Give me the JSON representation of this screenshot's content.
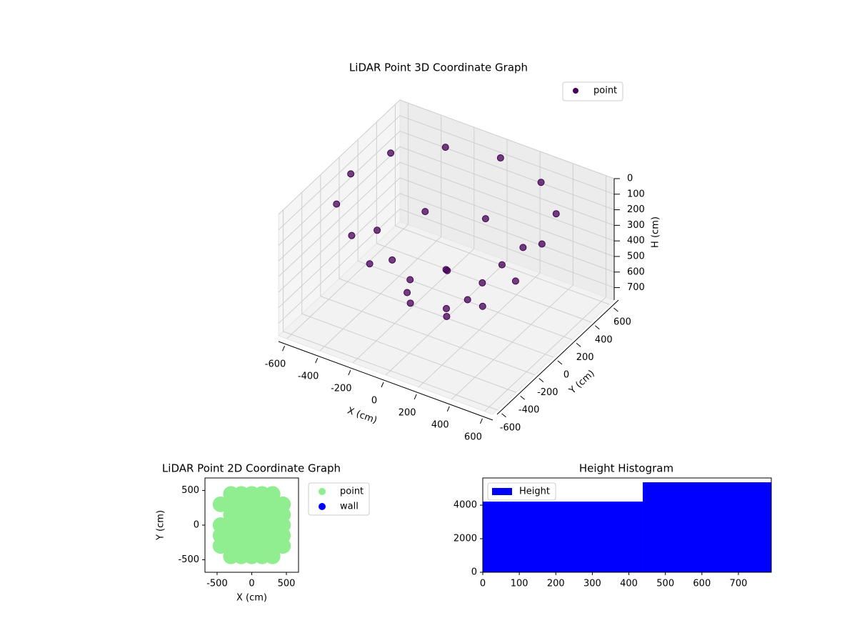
{
  "chart_data": [
    {
      "type": "scatter3d",
      "title": "LiDAR Point 3D Coordinate Graph",
      "xlabel": "X (cm)",
      "ylabel": "Y (cm)",
      "zlabel": "H (cm)",
      "xlim": [
        -650,
        650
      ],
      "ylim": [
        -650,
        650
      ],
      "zlim": [
        780,
        0
      ],
      "xticks": [
        -600,
        -400,
        -200,
        0,
        200,
        400,
        600
      ],
      "yticks": [
        -600,
        -400,
        -200,
        0,
        200,
        400,
        600
      ],
      "zticks": [
        0,
        100,
        200,
        300,
        400,
        500,
        600,
        700
      ],
      "grid": true,
      "legend": "upper right",
      "series": [
        {
          "name": "point",
          "color": "#440154",
          "x": [
            580,
            502,
            290,
            0,
            -290,
            -502,
            -580,
            -502,
            -290,
            0,
            290,
            502,
            420,
            297,
            0,
            -297,
            -420,
            -297,
            0,
            297,
            220,
            110,
            -110,
            -220,
            -110,
            110,
            0
          ],
          "y": [
            0,
            290,
            502,
            580,
            502,
            290,
            0,
            -290,
            -502,
            -580,
            -502,
            -290,
            0,
            297,
            420,
            297,
            0,
            -297,
            -420,
            -297,
            0,
            191,
            191,
            0,
            -191,
            -191,
            0
          ],
          "h": [
            80,
            80,
            80,
            80,
            80,
            80,
            80,
            80,
            80,
            80,
            80,
            80,
            380,
            380,
            380,
            380,
            380,
            380,
            380,
            380,
            620,
            620,
            620,
            620,
            620,
            620,
            720
          ]
        }
      ]
    },
    {
      "type": "scatter",
      "title": "LiDAR Point 2D Coordinate Graph",
      "xlabel": "X (cm)",
      "ylabel": "Y (cm)",
      "xlim": [
        -675,
        675
      ],
      "ylim": [
        -680,
        680
      ],
      "xticks": [
        -500,
        0,
        500
      ],
      "yticks": [
        -500,
        0,
        500
      ],
      "legend": "outside right",
      "series": [
        {
          "name": "point",
          "color": "#90ee90",
          "x": [
            -300,
            -150,
            0,
            150,
            300,
            -450,
            -300,
            -150,
            0,
            150,
            300,
            450,
            -450,
            -300,
            -150,
            0,
            150,
            300,
            450,
            -450,
            -300,
            -150,
            0,
            150,
            300,
            450,
            -300,
            -150,
            0,
            150,
            300,
            450,
            -450,
            -300,
            -150,
            0,
            150,
            300,
            450,
            -300,
            -150,
            0,
            150,
            300
          ],
          "values": [
            -450,
            -450,
            -450,
            -450,
            -450,
            -300,
            -300,
            -300,
            -300,
            -300,
            -300,
            -300,
            -150,
            -150,
            -150,
            -150,
            -150,
            -150,
            -150,
            0,
            0,
            0,
            0,
            0,
            0,
            0,
            150,
            150,
            150,
            150,
            150,
            150,
            300,
            300,
            300,
            300,
            300,
            300,
            300,
            450,
            450,
            450,
            450,
            450
          ]
        },
        {
          "name": "wall",
          "color": "#0000ff",
          "x": [],
          "values": []
        }
      ]
    },
    {
      "type": "histogram",
      "title": "Height Histogram",
      "bins": [
        0,
        438,
        790
      ],
      "xlim": [
        0,
        790
      ],
      "ylim": [
        0,
        5620
      ],
      "xticks": [
        0,
        100,
        200,
        300,
        400,
        500,
        600,
        700
      ],
      "yticks": [
        0,
        2000,
        4000
      ],
      "legend": "upper left",
      "series": [
        {
          "name": "Height",
          "color": "#0000ff",
          "values": [
            4213,
            5362
          ]
        }
      ]
    }
  ]
}
